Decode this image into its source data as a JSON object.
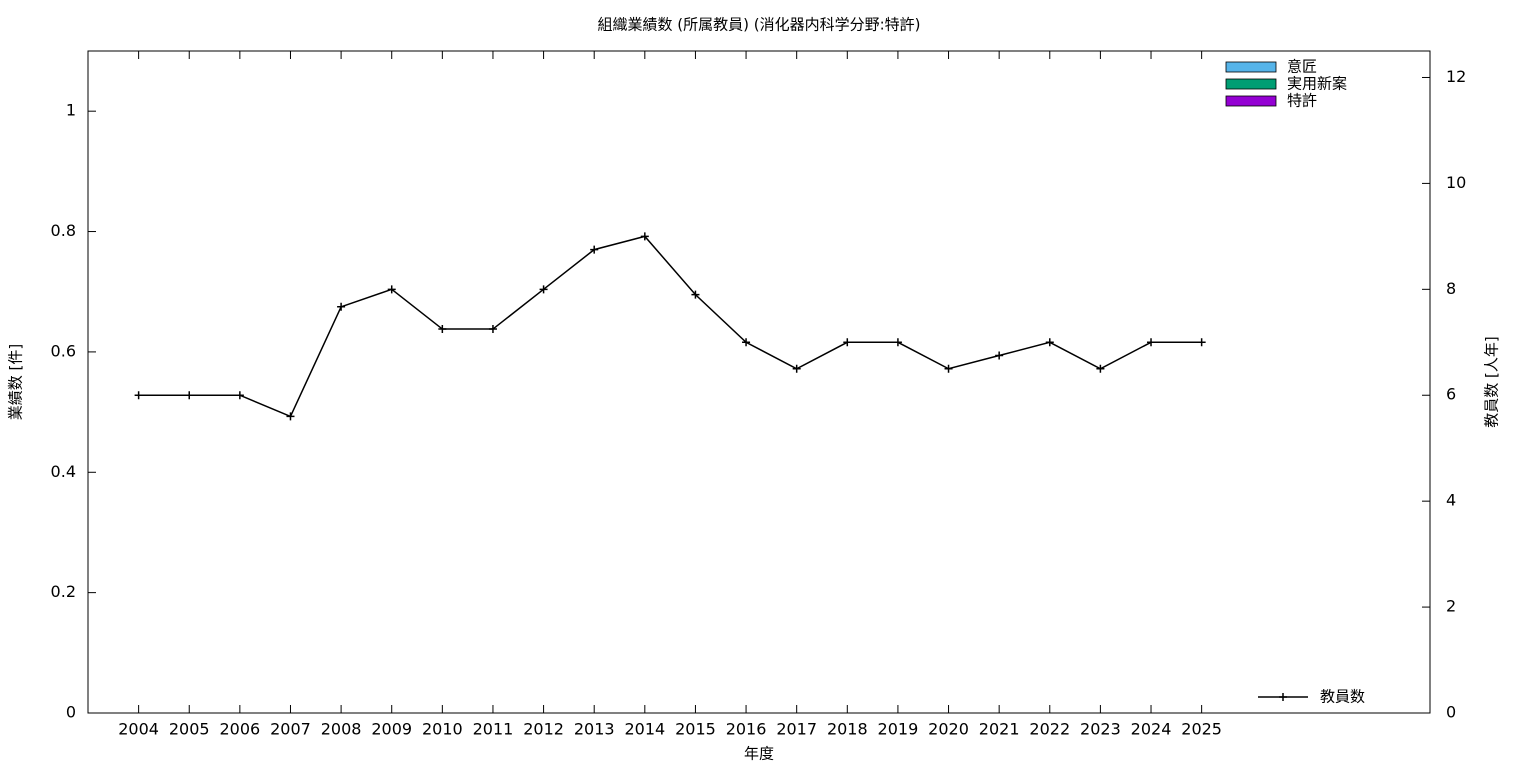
{
  "chart_data": {
    "type": "bar",
    "stacked": true,
    "title": "組織業績数 (所属教員) (消化器内科学分野:特許)",
    "xlabel": "年度",
    "ylabel": "業績数 [件]",
    "y2label": "教員数 [人年]",
    "categories": [
      "2004",
      "2005",
      "2006",
      "2007",
      "2008",
      "2009",
      "2010",
      "2011",
      "2012",
      "2013",
      "2014",
      "2015",
      "2016",
      "2017",
      "2018",
      "2019",
      "2020",
      "2021",
      "2022",
      "2023",
      "2024",
      "2025"
    ],
    "ylim": [
      0,
      1.1
    ],
    "yticks": [
      0,
      0.2,
      0.4,
      0.6,
      0.8,
      1
    ],
    "y2lim": [
      0,
      12.5
    ],
    "y2ticks": [
      0,
      2,
      4,
      6,
      8,
      10,
      12
    ],
    "series": [
      {
        "name": "意匠",
        "color": "#56b4e9",
        "values": [
          0,
          0,
          0,
          0,
          0,
          0,
          0,
          0,
          0,
          0,
          0,
          0,
          0,
          0,
          0,
          0,
          0,
          0,
          0,
          0,
          0,
          0
        ]
      },
      {
        "name": "実用新案",
        "color": "#009e73",
        "values": [
          0,
          0,
          0,
          0,
          0,
          0,
          0,
          0,
          0,
          0,
          0,
          0,
          0,
          0,
          0,
          0,
          0,
          0,
          0,
          0,
          0,
          0
        ]
      },
      {
        "name": "特許",
        "color": "#9400d3",
        "values": [
          0,
          0,
          0,
          0,
          0,
          0,
          0,
          0,
          0,
          0,
          0,
          0,
          0,
          0,
          0,
          0,
          0,
          0,
          0,
          0,
          0,
          0
        ]
      },
      {
        "name": "教員数",
        "type": "line",
        "axis": "y2",
        "color": "#000000",
        "values": [
          6,
          6,
          6,
          5.6,
          7.67,
          8,
          7.25,
          7.25,
          8,
          8.75,
          9,
          7.9,
          7,
          6.5,
          7,
          7,
          6.5,
          6.75,
          7,
          6.5,
          7,
          7
        ]
      }
    ]
  }
}
